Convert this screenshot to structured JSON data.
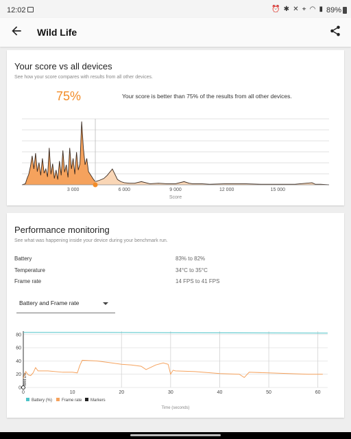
{
  "status": {
    "time": "12:02",
    "battery": "89%",
    "icons": "⏰ ✱ ✕ ⌖ ◠ ▮"
  },
  "appbar": {
    "title": "Wild Life",
    "back_icon": "arrow-left-icon",
    "share_icon": "share-icon"
  },
  "score": {
    "title": "Your score vs all devices",
    "subtitle": "See how your score compares with results from all other devices.",
    "percentile": "75%",
    "description": "Your score is better than 75% of the results from all other devices.",
    "xlabel": "Score",
    "accent": "#f28c28"
  },
  "perf": {
    "title": "Performance monitoring",
    "subtitle": "See what was happening inside your device during your benchmark run.",
    "rows": [
      {
        "label": "Battery",
        "value": "83% to 82%"
      },
      {
        "label": "Temperature",
        "value": "34°C to 35°C"
      },
      {
        "label": "Frame rate",
        "value": "14 FPS to 41 FPS"
      }
    ],
    "dropdown": "Battery and Frame rate",
    "xlabel": "Time (seconds)",
    "legend": [
      "Battery (%)",
      "Frame rate",
      "Markers"
    ],
    "marker_label": "Wild Life",
    "colors": {
      "battery": "#4cc3c8",
      "framerate": "#f5a25d",
      "markers": "#222222"
    }
  },
  "chart_data": [
    {
      "type": "area",
      "xlabel": "Score",
      "ylabel": "",
      "xticks": [
        "3 000",
        "6 000",
        "9 000",
        "12 000",
        "15 000"
      ],
      "xtick_values": [
        3000,
        6000,
        9000,
        12000,
        15000
      ],
      "xlim": [
        0,
        18000
      ],
      "user_score": 4300,
      "note": "distribution of scores; orange area = scores below user, cream area = above",
      "x": [
        0,
        200,
        300,
        400,
        500,
        600,
        700,
        800,
        900,
        1000,
        1100,
        1200,
        1300,
        1400,
        1500,
        1600,
        1700,
        1800,
        1900,
        2000,
        2100,
        2200,
        2300,
        2400,
        2500,
        2600,
        2700,
        2800,
        2900,
        3000,
        3100,
        3200,
        3300,
        3400,
        3500,
        3600,
        3700,
        3800,
        3900,
        4000,
        4100,
        4200,
        4300,
        4500,
        4800,
        5000,
        5300,
        5600,
        5800,
        6000,
        6300,
        6600,
        7000,
        7500,
        8000,
        8500,
        9000,
        9500,
        9800,
        10000,
        10500,
        11000,
        12000,
        13000,
        14000,
        15000,
        16000,
        17000,
        17200,
        17500,
        18000
      ],
      "y": [
        0,
        2,
        12,
        20,
        35,
        55,
        30,
        60,
        25,
        42,
        18,
        50,
        22,
        30,
        15,
        70,
        20,
        40,
        12,
        28,
        10,
        45,
        18,
        65,
        24,
        38,
        14,
        70,
        30,
        50,
        20,
        62,
        28,
        40,
        120,
        70,
        38,
        50,
        25,
        20,
        15,
        10,
        6,
        8,
        12,
        18,
        30,
        10,
        6,
        4,
        3,
        3,
        6,
        2,
        3,
        2,
        2,
        6,
        3,
        2,
        2,
        1,
        2,
        2,
        1,
        1,
        1,
        4,
        1,
        1,
        0
      ]
    },
    {
      "type": "line",
      "xlabel": "Time (seconds)",
      "ylabel": "",
      "xlim": [
        0,
        62
      ],
      "ylim": [
        0,
        85
      ],
      "xticks": [
        0,
        10,
        20,
        30,
        40,
        50,
        60
      ],
      "yticks": [
        0,
        20,
        40,
        60,
        80
      ],
      "markers": [
        0,
        20,
        30,
        40,
        50,
        60
      ],
      "series": [
        {
          "name": "Battery (%)",
          "x": [
            0,
            15,
            62
          ],
          "values": [
            83,
            83,
            82
          ]
        },
        {
          "name": "Frame rate",
          "x": [
            0,
            0.5,
            1,
            1.5,
            2,
            2.5,
            3,
            5,
            8,
            10,
            11,
            11.5,
            12,
            15,
            18,
            20,
            22,
            24,
            25,
            27,
            28.5,
            29.5,
            30,
            30.5,
            31,
            35,
            40,
            44,
            45,
            46,
            50,
            54,
            58,
            60,
            61
          ],
          "values": [
            14,
            24,
            19,
            18,
            22,
            30,
            25,
            25,
            23,
            23,
            22,
            33,
            41,
            40,
            37,
            35,
            34,
            32,
            27,
            34,
            37,
            35,
            20,
            26,
            25,
            24,
            21,
            20,
            15,
            23,
            22,
            21,
            20,
            20,
            20
          ]
        }
      ]
    }
  ]
}
